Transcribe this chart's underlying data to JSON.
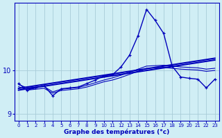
{
  "xlabel": "Graphe des températures (°c)",
  "hours": [
    0,
    1,
    2,
    3,
    4,
    5,
    6,
    7,
    8,
    9,
    10,
    11,
    12,
    13,
    14,
    15,
    16,
    17,
    18,
    19,
    20,
    21,
    22,
    23
  ],
  "temp_main": [
    9.7,
    9.55,
    9.6,
    9.65,
    9.42,
    9.58,
    9.6,
    9.62,
    9.7,
    9.78,
    9.88,
    9.9,
    10.08,
    10.35,
    10.8,
    11.4,
    11.15,
    10.85,
    10.1,
    9.85,
    9.82,
    9.8,
    9.6,
    9.8
  ],
  "temp_min": [
    9.63,
    9.55,
    9.57,
    9.59,
    9.48,
    9.54,
    9.56,
    9.58,
    9.62,
    9.68,
    9.74,
    9.78,
    9.84,
    9.91,
    9.98,
    10.05,
    10.06,
    10.07,
    10.05,
    10.03,
    10.02,
    10.01,
    9.98,
    10.0
  ],
  "temp_max": [
    9.68,
    9.6,
    9.62,
    9.63,
    9.51,
    9.57,
    9.59,
    9.61,
    9.66,
    9.72,
    9.78,
    9.83,
    9.89,
    9.96,
    10.03,
    10.1,
    10.11,
    10.12,
    10.1,
    10.08,
    10.07,
    10.06,
    10.03,
    10.05
  ],
  "trend1": [
    9.59,
    9.62,
    9.65,
    9.68,
    9.71,
    9.74,
    9.77,
    9.8,
    9.83,
    9.86,
    9.89,
    9.92,
    9.95,
    9.98,
    10.01,
    10.04,
    10.07,
    10.1,
    10.13,
    10.16,
    10.19,
    10.22,
    10.25,
    10.28
  ],
  "trend2": [
    9.55,
    9.58,
    9.61,
    9.64,
    9.67,
    9.7,
    9.73,
    9.76,
    9.79,
    9.82,
    9.85,
    9.88,
    9.91,
    9.94,
    9.97,
    10.0,
    10.03,
    10.06,
    10.09,
    10.12,
    10.15,
    10.18,
    10.21,
    10.24
  ],
  "line_color": "#0000bb",
  "bg_color": "#d0eef5",
  "grid_color": "#a8ccd8",
  "ylim": [
    8.85,
    11.55
  ],
  "yticks": [
    9,
    10
  ],
  "xticks": [
    0,
    1,
    2,
    3,
    4,
    5,
    6,
    7,
    8,
    9,
    10,
    11,
    12,
    13,
    14,
    15,
    16,
    17,
    18,
    19,
    20,
    21,
    22,
    23
  ]
}
